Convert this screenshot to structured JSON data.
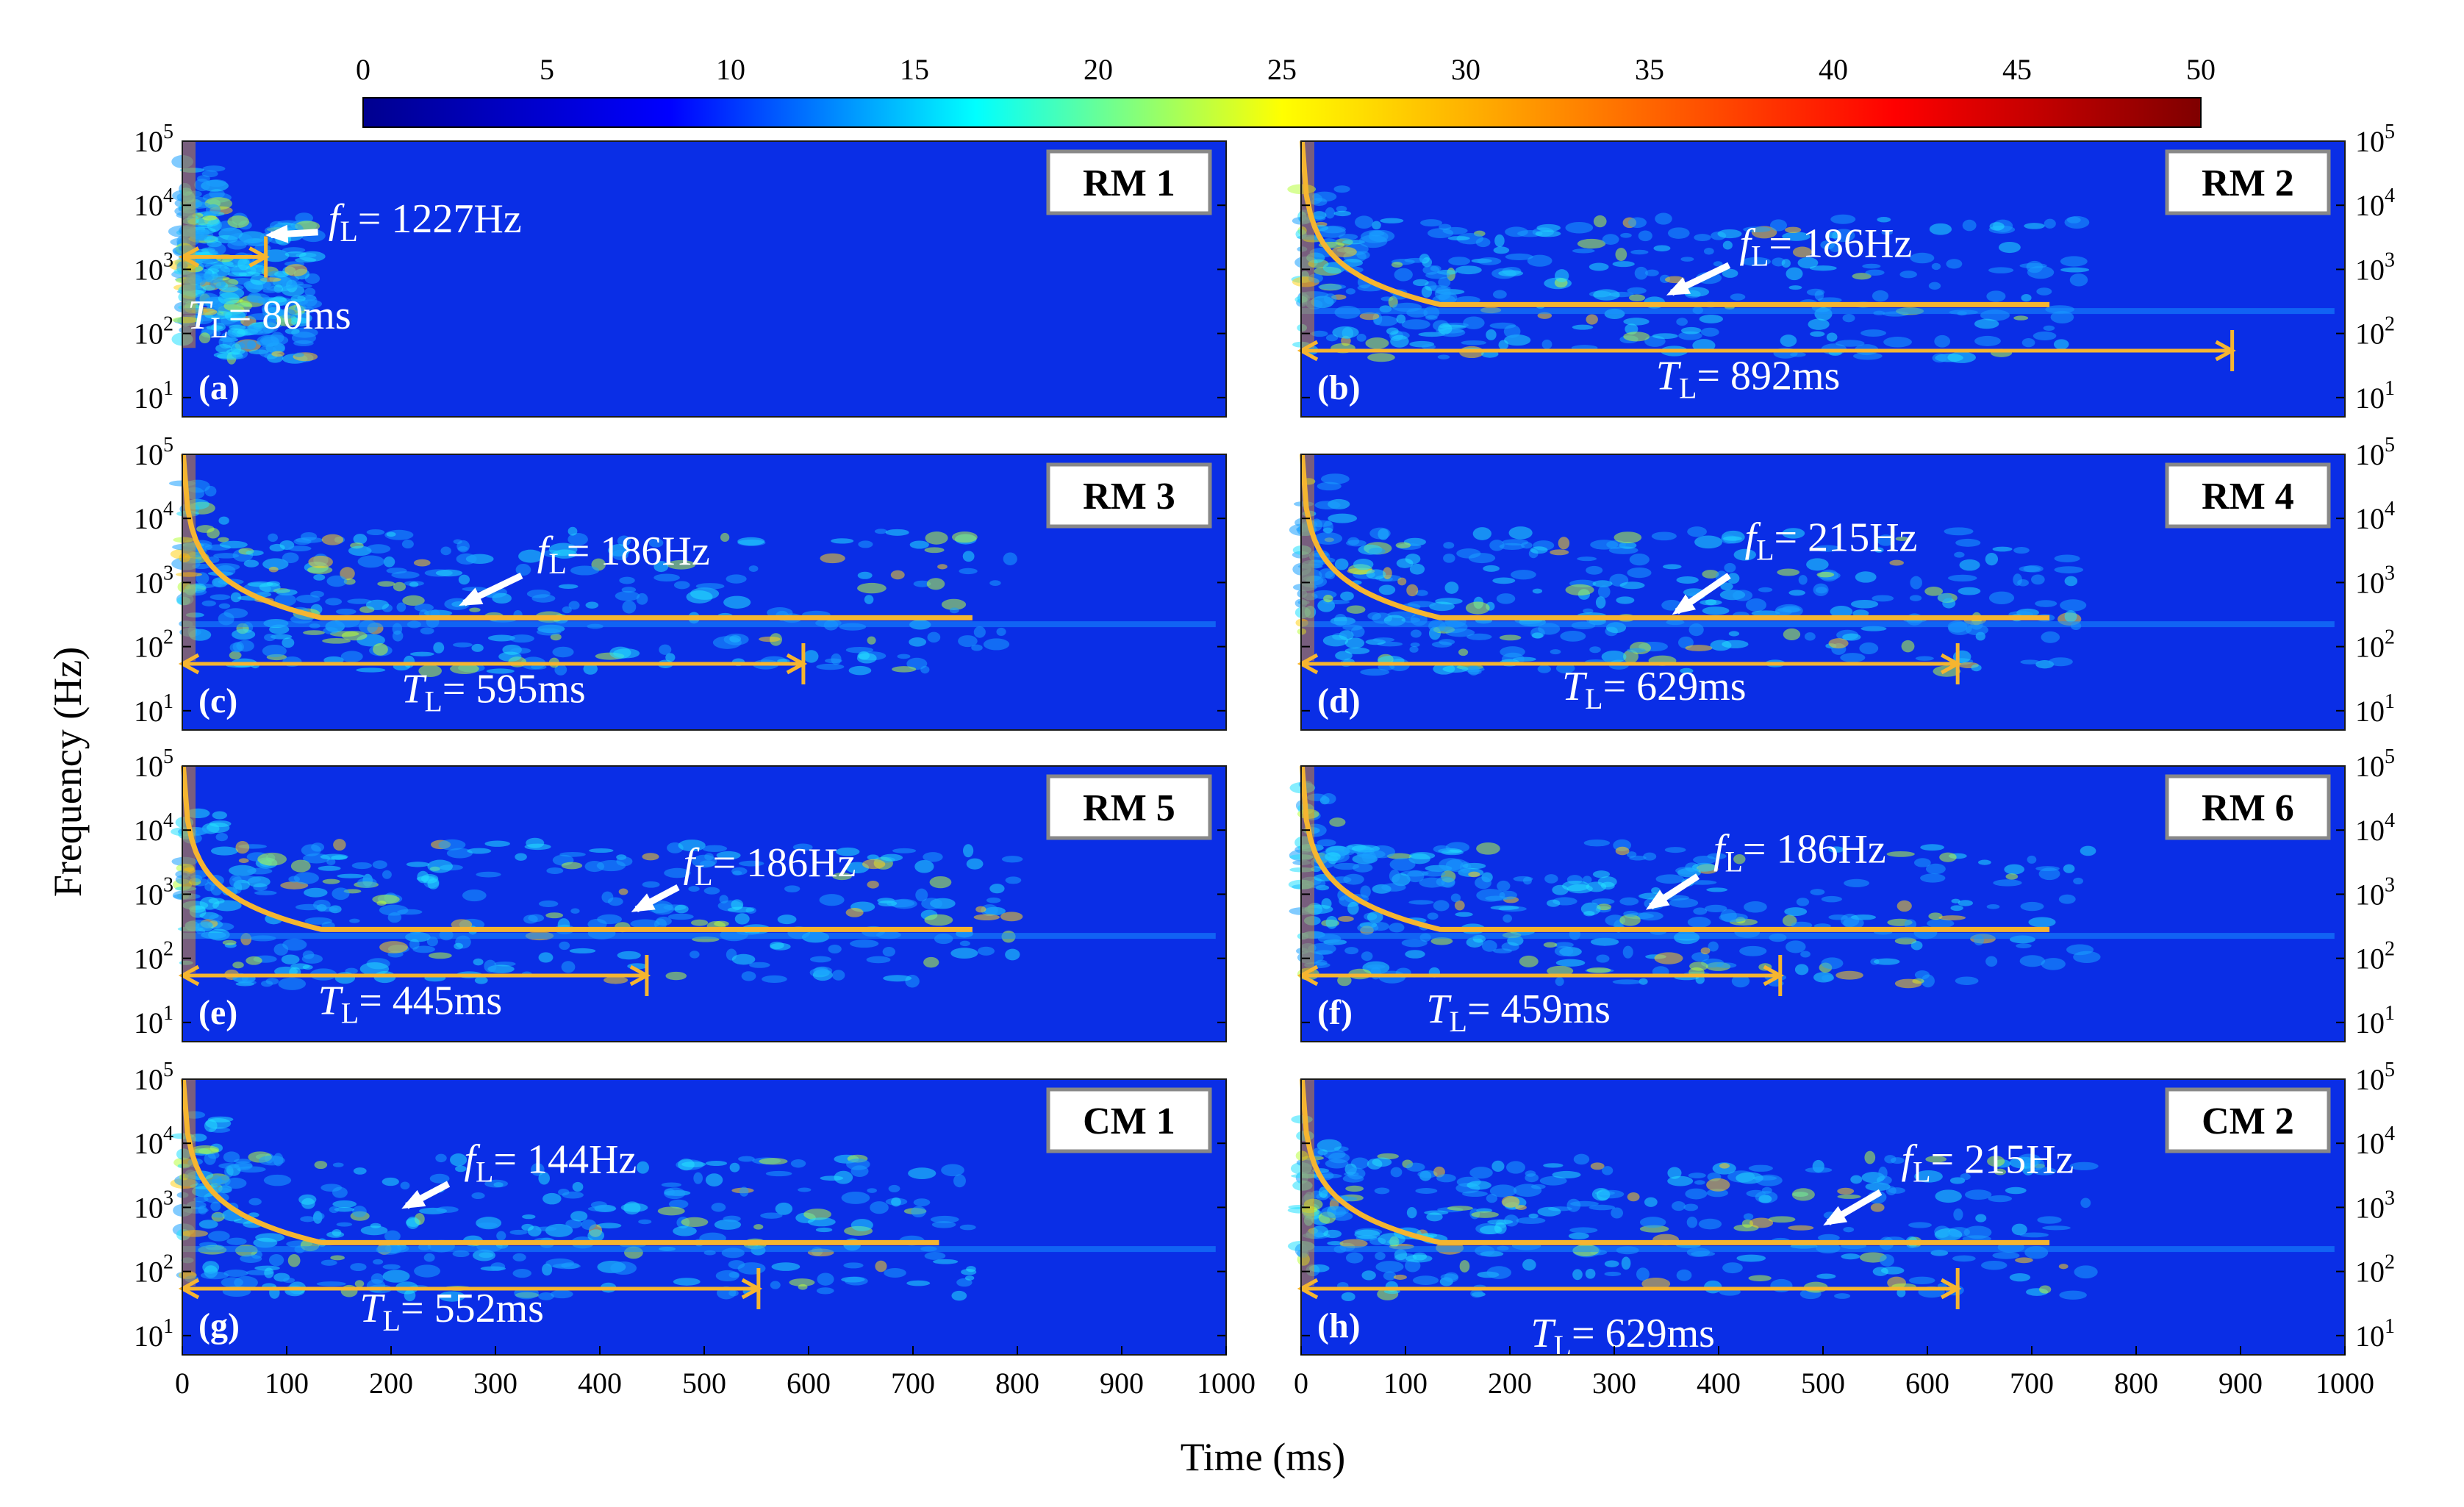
{
  "colorbar": {
    "ticks": [
      "0",
      "5",
      "10",
      "15",
      "20",
      "25",
      "30",
      "35",
      "40",
      "45",
      "50"
    ],
    "colors": [
      "#00008f",
      "#0000ff",
      "#00ffff",
      "#ffff00",
      "#ff7f00",
      "#ff0000",
      "#7f0000"
    ]
  },
  "axes": {
    "ylabel": "Frequency (Hz)",
    "xlabel": "Time (ms)",
    "x_ticks": [
      "0",
      "100",
      "200",
      "300",
      "400",
      "500",
      "600",
      "700",
      "800",
      "900",
      "1000"
    ],
    "y_ticks": [
      {
        "base": "10",
        "exp": "5"
      },
      {
        "base": "10",
        "exp": "4"
      },
      {
        "base": "10",
        "exp": "3"
      },
      {
        "base": "10",
        "exp": "2"
      },
      {
        "base": "10",
        "exp": "1"
      }
    ]
  },
  "chart_data": {
    "type": "heatmap",
    "xlim": [
      0,
      1000
    ],
    "ylim_log10": [
      0.7,
      5
    ],
    "clim": [
      0,
      50
    ],
    "background_color": "#0a2ee6",
    "curve_color": "#f5b530",
    "panels": [
      {
        "name": "RM 1",
        "label": "(a)",
        "fL_text": "= 1227Hz",
        "TL_text": "= 80ms",
        "fL_hz": 1227,
        "TL_ms": 80,
        "curve_end_ms": null
      },
      {
        "name": "RM 2",
        "label": "(b)",
        "fL_text": "= 186Hz",
        "TL_text": "= 892ms",
        "fL_hz": 186,
        "TL_ms": 892,
        "curve_end_ms": 720
      },
      {
        "name": "RM 3",
        "label": "(c)",
        "fL_text": "= 186Hz",
        "TL_text": "= 595ms",
        "fL_hz": 186,
        "TL_ms": 595,
        "curve_end_ms": 760
      },
      {
        "name": "RM 4",
        "label": "(d)",
        "fL_text": "= 215Hz",
        "TL_text": "= 629ms",
        "fL_hz": 215,
        "TL_ms": 629,
        "curve_end_ms": 720
      },
      {
        "name": "RM 5",
        "label": "(e)",
        "fL_text": "= 186Hz",
        "TL_text": "= 445ms",
        "fL_hz": 186,
        "TL_ms": 445,
        "curve_end_ms": 760
      },
      {
        "name": "RM 6",
        "label": "(f)",
        "fL_text": "= 186Hz",
        "TL_text": "= 459ms",
        "fL_hz": 186,
        "TL_ms": 459,
        "curve_end_ms": 720
      },
      {
        "name": "CM 1",
        "label": "(g)",
        "fL_text": "= 144Hz",
        "TL_text": "= 552ms",
        "fL_hz": 144,
        "TL_ms": 552,
        "curve_end_ms": 725
      },
      {
        "name": "CM 2",
        "label": "(h)",
        "fL_text": "= 215Hz",
        "TL_text": "= 629ms",
        "fL_hz": 215,
        "TL_ms": 629,
        "curve_end_ms": 720
      }
    ],
    "annotation_symbols": {
      "f_symbol": "f",
      "T_symbol": "T",
      "subscript": "L"
    }
  }
}
